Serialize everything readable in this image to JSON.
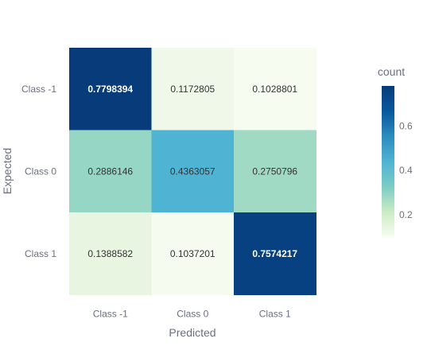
{
  "chart_data": {
    "type": "heatmap",
    "title": "",
    "xlabel": "Predicted",
    "ylabel": "Expected",
    "x_categories": [
      "Class -1",
      "Class 0",
      "Class 1"
    ],
    "y_categories": [
      "Class -1",
      "Class 0",
      "Class 1"
    ],
    "values": [
      [
        0.7798394,
        0.1172805,
        0.1028801
      ],
      [
        0.2886146,
        0.4363057,
        0.2750796
      ],
      [
        0.1388582,
        0.1037201,
        0.7574217
      ]
    ],
    "value_labels": [
      [
        "0.7798394",
        "0.1172805",
        "0.1028801"
      ],
      [
        "0.2886146",
        "0.4363057",
        "0.2750796"
      ],
      [
        "0.1388582",
        "0.1037201",
        "0.7574217"
      ]
    ],
    "colorscale": "GnBu",
    "colorscale_stops": [
      "#f7fcf0",
      "#ccebc5",
      "#7bccc4",
      "#4eb3d3",
      "#2b8cbe",
      "#08589e",
      "#083b7a"
    ],
    "colorbar": {
      "title": "count",
      "min": 0.1,
      "max": 0.78,
      "ticks": [
        0.2,
        0.4,
        0.6
      ],
      "tick_labels": [
        "0.2",
        "0.4",
        "0.6"
      ]
    }
  }
}
